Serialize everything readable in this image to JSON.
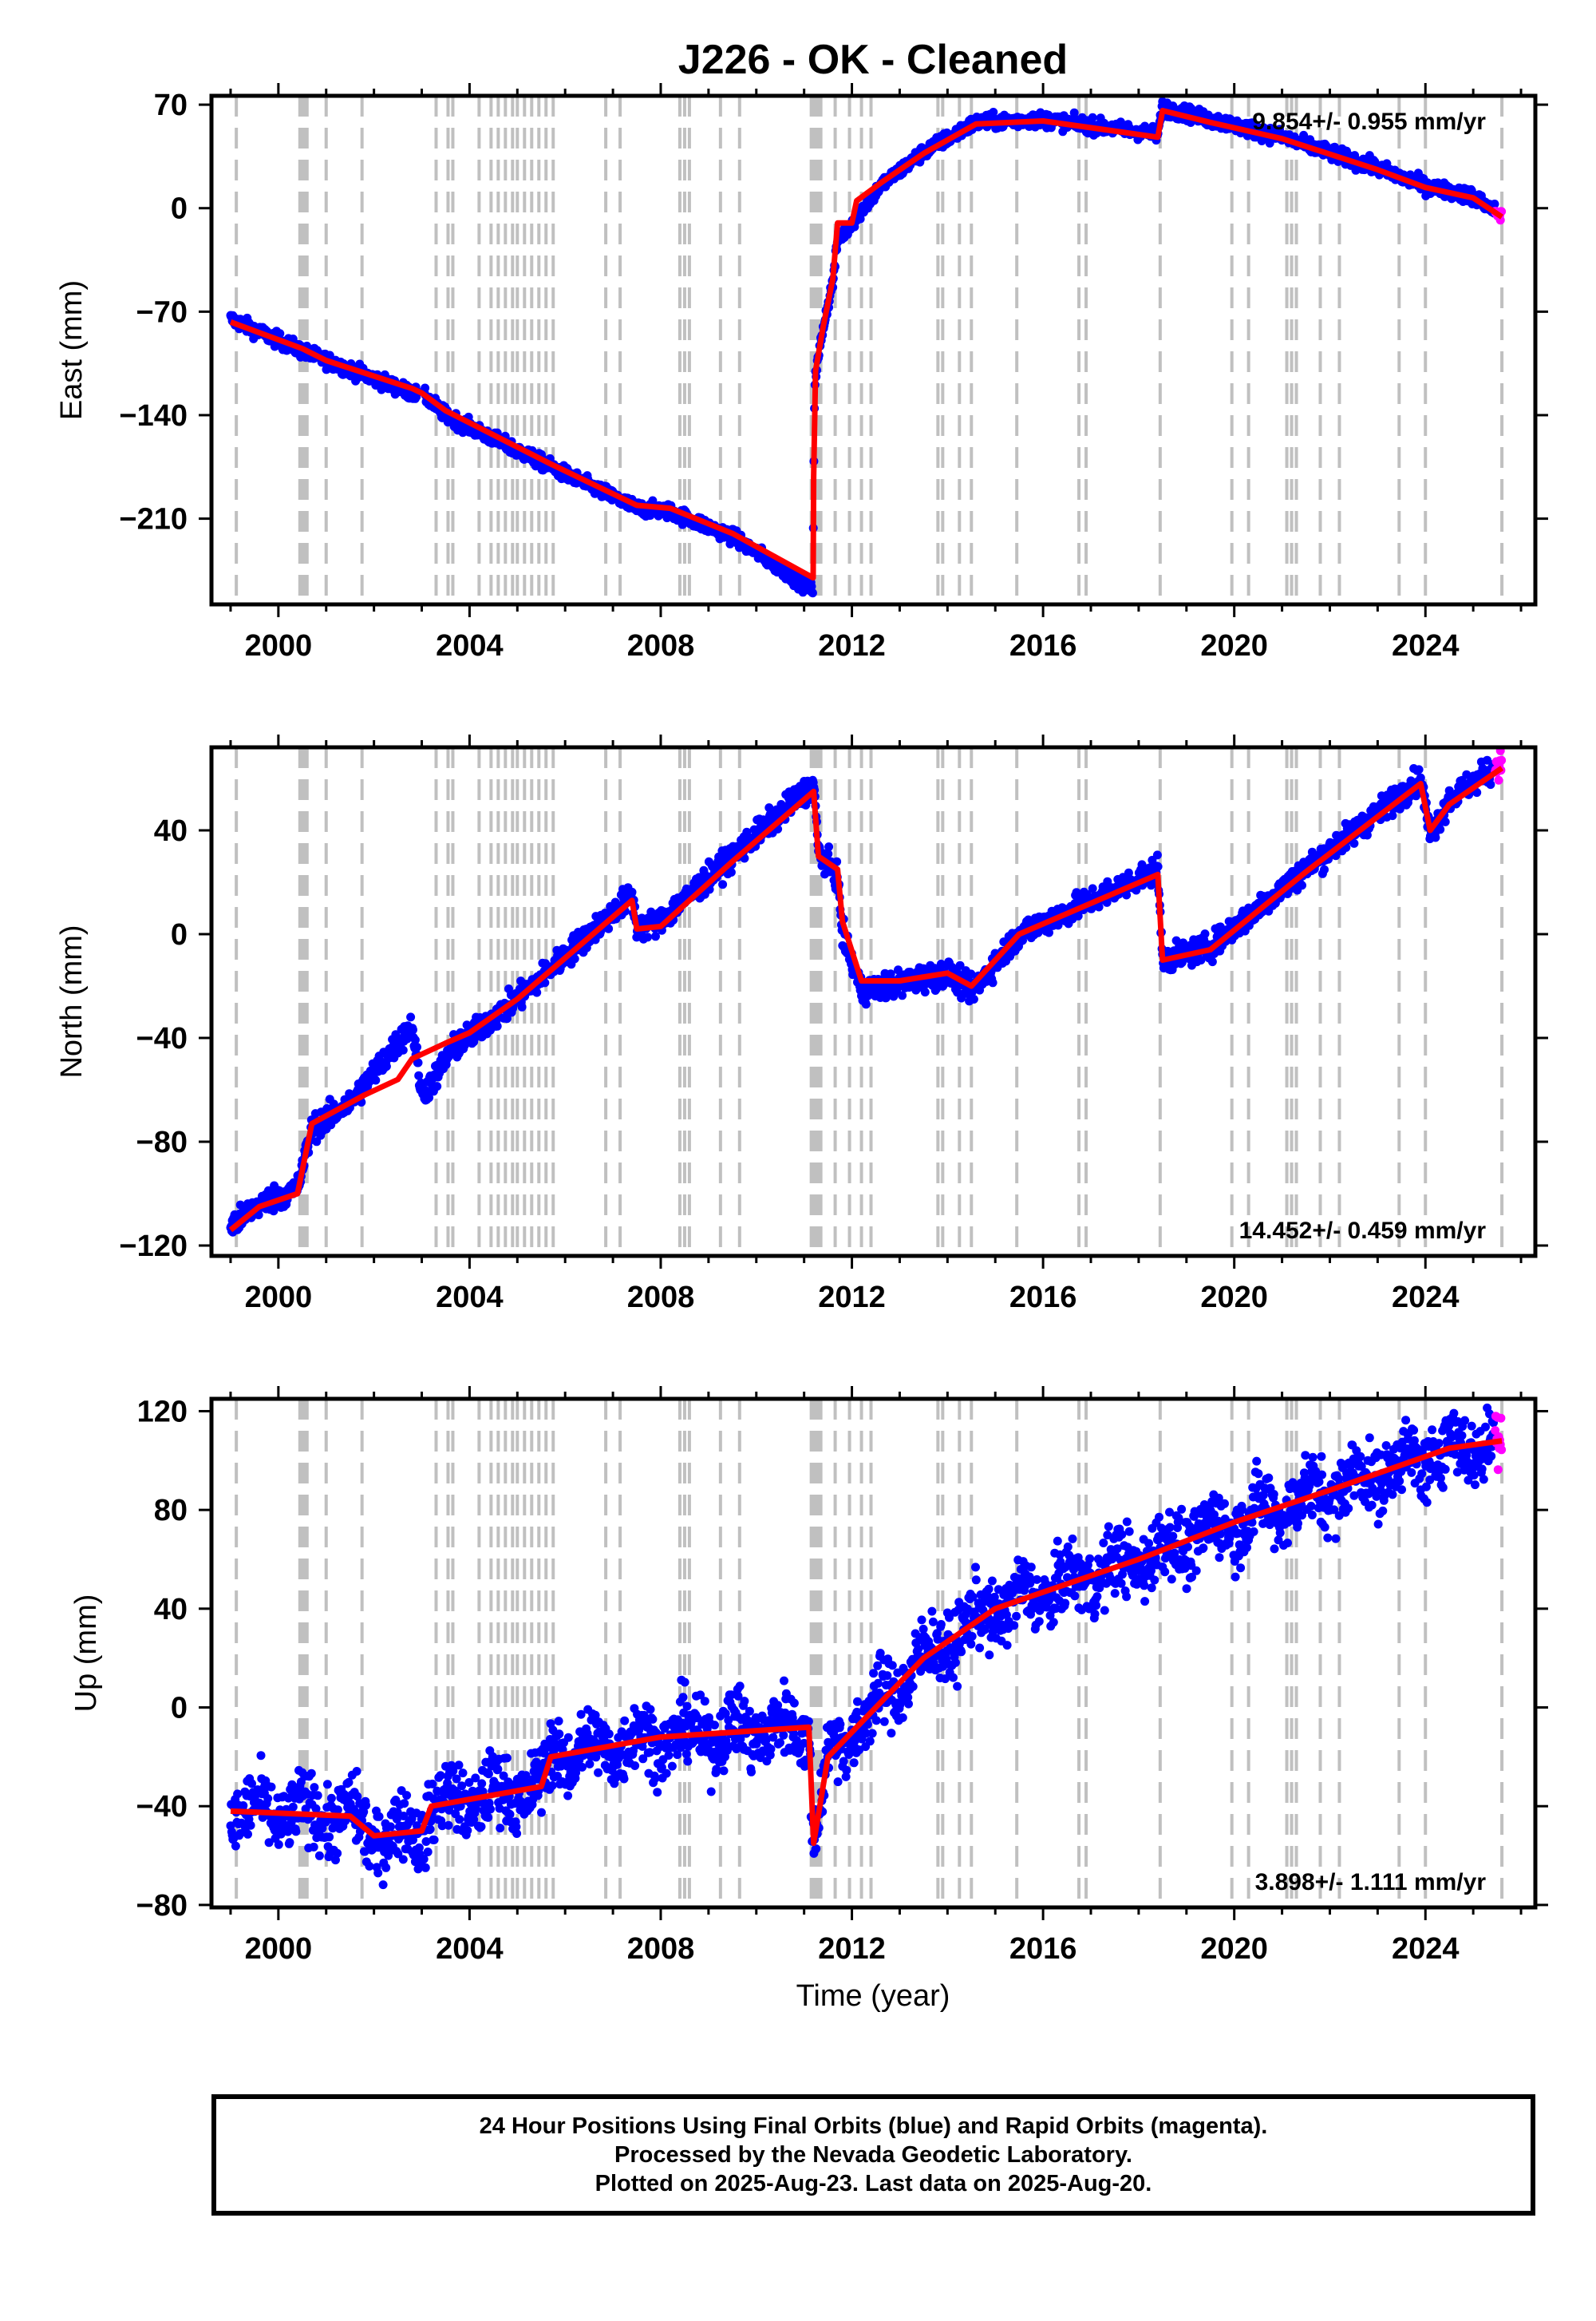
{
  "title": "J226  - OK - Cleaned",
  "xlabel": "Time (year)",
  "footer": {
    "line1": "24 Hour Positions Using Final Orbits (blue) and Rapid Orbits (magenta).",
    "line2": "Processed by the Nevada Geodetic Laboratory.",
    "line3": "Plotted on 2025-Aug-23. Last data on 2025-Aug-20."
  },
  "colors": {
    "final_orbits": "#0000ff",
    "rapid_orbits": "#ff00ff",
    "model": "#ff0000",
    "breaks": "#c0c0c0",
    "frame": "#000000"
  },
  "chart_data": [
    {
      "type": "scatter",
      "ylabel": "East (mm)",
      "rate_text": "9.854+/- 0.955 mm/yr",
      "rate_position": "top-right",
      "xlim": [
        1998.6,
        2026.3
      ],
      "ylim": [
        -268,
        76
      ],
      "x_ticks": [
        "2000",
        "2004",
        "2008",
        "2012",
        "2016",
        "2020",
        "2024"
      ],
      "y_ticks": [
        "70",
        "0",
        "−70",
        "−140",
        "−210"
      ],
      "y_tick_values": [
        70,
        0,
        -70,
        -140,
        -210
      ],
      "trend_points": [
        [
          1999.0,
          -75
        ],
        [
          2000.6,
          -98
        ],
        [
          2002.8,
          -125
        ],
        [
          2003.1,
          -128
        ],
        [
          2003.5,
          -140
        ],
        [
          2005.7,
          -175
        ],
        [
          2007.5,
          -203
        ],
        [
          2008.2,
          -205
        ],
        [
          2009.5,
          -222
        ],
        [
          2011.18,
          -258
        ],
        [
          2011.2,
          -185
        ],
        [
          2011.22,
          -118
        ],
        [
          2011.4,
          -80
        ],
        [
          2011.6,
          -50
        ],
        [
          2011.7,
          -22
        ],
        [
          2012.0,
          -10
        ],
        [
          2012.6,
          15
        ],
        [
          2013.5,
          38
        ],
        [
          2014.6,
          58
        ],
        [
          2016.0,
          60
        ],
        [
          2018.4,
          50
        ],
        [
          2018.5,
          68
        ],
        [
          2019.5,
          60
        ],
        [
          2021.0,
          48
        ],
        [
          2023.0,
          27
        ],
        [
          2024.0,
          15
        ],
        [
          2025.0,
          8
        ],
        [
          2025.6,
          -5
        ]
      ],
      "model_points": [
        [
          1999.0,
          -77
        ],
        [
          2000.5,
          -95
        ],
        [
          2001.0,
          -103
        ],
        [
          2002.8,
          -122
        ],
        [
          2003.0,
          -125
        ],
        [
          2003.5,
          -137
        ],
        [
          2005.7,
          -173
        ],
        [
          2007.5,
          -201
        ],
        [
          2008.2,
          -203
        ],
        [
          2009.5,
          -220
        ],
        [
          2011.19,
          -250
        ],
        [
          2011.2,
          -182
        ],
        [
          2011.24,
          -110
        ],
        [
          2011.4,
          -80
        ],
        [
          2011.6,
          -48
        ],
        [
          2011.7,
          -10
        ],
        [
          2012.0,
          -10
        ],
        [
          2012.1,
          5
        ],
        [
          2012.6,
          17
        ],
        [
          2013.5,
          37
        ],
        [
          2014.6,
          57
        ],
        [
          2016.0,
          59
        ],
        [
          2018.4,
          48
        ],
        [
          2018.5,
          66
        ],
        [
          2019.5,
          58
        ],
        [
          2021.0,
          47
        ],
        [
          2023.0,
          26
        ],
        [
          2024.0,
          14
        ],
        [
          2025.0,
          7
        ],
        [
          2025.6,
          -6
        ]
      ],
      "noise_mm": 2.5,
      "rapid_range": [
        2025.45,
        2025.64
      ]
    },
    {
      "type": "scatter",
      "ylabel": "North (mm)",
      "rate_text": "14.452+/- 0.459 mm/yr",
      "rate_position": "bottom-right",
      "xlim": [
        1998.6,
        2026.3
      ],
      "ylim": [
        -124,
        72
      ],
      "x_ticks": [
        "2000",
        "2004",
        "2008",
        "2012",
        "2016",
        "2020",
        "2024"
      ],
      "y_ticks": [
        "40",
        "0",
        "−40",
        "−80",
        "−120"
      ],
      "y_tick_values": [
        40,
        0,
        -40,
        -80,
        -120
      ],
      "trend_points": [
        [
          1999.0,
          -113
        ],
        [
          1999.5,
          -105
        ],
        [
          2000.4,
          -98
        ],
        [
          2000.7,
          -75
        ],
        [
          2001.5,
          -65
        ],
        [
          2002.8,
          -35
        ],
        [
          2003.0,
          -62
        ],
        [
          2003.3,
          -55
        ],
        [
          2003.6,
          -45
        ],
        [
          2005.0,
          -25
        ],
        [
          2007.4,
          15
        ],
        [
          2007.5,
          2
        ],
        [
          2008.0,
          5
        ],
        [
          2009.5,
          30
        ],
        [
          2011.2,
          58
        ],
        [
          2011.3,
          32
        ],
        [
          2011.7,
          22
        ],
        [
          2011.8,
          0
        ],
        [
          2012.2,
          -22
        ],
        [
          2014.0,
          -15
        ],
        [
          2014.5,
          -22
        ],
        [
          2015.5,
          0
        ],
        [
          2018.4,
          25
        ],
        [
          2018.5,
          -10
        ],
        [
          2019.5,
          -5
        ],
        [
          2021.5,
          25
        ],
        [
          2023.9,
          60
        ],
        [
          2024.1,
          38
        ],
        [
          2024.5,
          52
        ],
        [
          2025.6,
          66
        ]
      ],
      "model_points": [
        [
          1999.0,
          -114
        ],
        [
          1999.6,
          -105
        ],
        [
          2000.4,
          -100
        ],
        [
          2000.7,
          -73
        ],
        [
          2001.5,
          -65
        ],
        [
          2001.8,
          -62
        ],
        [
          2002.5,
          -56
        ],
        [
          2002.8,
          -48
        ],
        [
          2003.5,
          -42
        ],
        [
          2004.0,
          -38
        ],
        [
          2005.0,
          -25
        ],
        [
          2007.4,
          13
        ],
        [
          2007.5,
          2
        ],
        [
          2008.0,
          3
        ],
        [
          2009.5,
          28
        ],
        [
          2011.2,
          55
        ],
        [
          2011.3,
          30
        ],
        [
          2011.7,
          25
        ],
        [
          2011.8,
          5
        ],
        [
          2012.2,
          -18
        ],
        [
          2013.0,
          -18
        ],
        [
          2014.0,
          -15
        ],
        [
          2014.5,
          -20
        ],
        [
          2015.5,
          0
        ],
        [
          2018.4,
          23
        ],
        [
          2018.5,
          -10
        ],
        [
          2019.5,
          -6
        ],
        [
          2021.5,
          24
        ],
        [
          2023.9,
          58
        ],
        [
          2024.1,
          40
        ],
        [
          2024.5,
          50
        ],
        [
          2025.6,
          64
        ]
      ],
      "noise_mm": 2.5,
      "rapid_range": [
        2025.45,
        2025.64
      ]
    },
    {
      "type": "scatter",
      "ylabel": "Up (mm)",
      "rate_text": "3.898+/- 1.111 mm/yr",
      "rate_position": "bottom-right",
      "xlim": [
        1998.6,
        2026.3
      ],
      "ylim": [
        -81,
        125
      ],
      "x_ticks": [
        "2000",
        "2004",
        "2008",
        "2012",
        "2016",
        "2020",
        "2024"
      ],
      "y_ticks": [
        "120",
        "80",
        "40",
        "0",
        "−40",
        "−80"
      ],
      "y_tick_values": [
        120,
        80,
        40,
        0,
        -40,
        -80
      ],
      "trend_points": [
        [
          1999.0,
          -42
        ],
        [
          2001.5,
          -44
        ],
        [
          2002.0,
          -52
        ],
        [
          2003.0,
          -50
        ],
        [
          2003.2,
          -40
        ],
        [
          2005.5,
          -32
        ],
        [
          2005.7,
          -20
        ],
        [
          2008.0,
          -12
        ],
        [
          2011.1,
          -8
        ],
        [
          2011.2,
          -55
        ],
        [
          2011.5,
          -20
        ],
        [
          2012.5,
          0
        ],
        [
          2013.5,
          20
        ],
        [
          2015.0,
          40
        ],
        [
          2018.0,
          60
        ],
        [
          2020.0,
          75
        ],
        [
          2022.0,
          88
        ],
        [
          2024.5,
          105
        ],
        [
          2025.6,
          108
        ]
      ],
      "model_points": [
        [
          1999.0,
          -42
        ],
        [
          2001.5,
          -44
        ],
        [
          2002.0,
          -52
        ],
        [
          2003.0,
          -50
        ],
        [
          2003.2,
          -40
        ],
        [
          2005.5,
          -32
        ],
        [
          2005.7,
          -20
        ],
        [
          2008.0,
          -12
        ],
        [
          2011.1,
          -8
        ],
        [
          2011.2,
          -55
        ],
        [
          2011.5,
          -20
        ],
        [
          2012.5,
          0
        ],
        [
          2013.5,
          20
        ],
        [
          2015.0,
          40
        ],
        [
          2018.0,
          60
        ],
        [
          2020.0,
          75
        ],
        [
          2022.0,
          88
        ],
        [
          2024.5,
          105
        ],
        [
          2025.6,
          108
        ]
      ],
      "seasonal_mm": 5,
      "noise_mm": 7,
      "rapid_range": [
        2025.45,
        2025.64
      ]
    }
  ],
  "equipment_break_years": [
    1999.12,
    2000.45,
    2000.5,
    2000.55,
    2000.6,
    2001.0,
    2001.75,
    2003.3,
    2003.55,
    2003.65,
    2004.2,
    2004.45,
    2004.6,
    2004.75,
    2004.9,
    2005.0,
    2005.15,
    2005.3,
    2005.45,
    2005.6,
    2005.75,
    2006.85,
    2007.15,
    2008.4,
    2008.5,
    2008.6,
    2009.25,
    2009.65,
    2011.15,
    2011.2,
    2011.25,
    2011.3,
    2011.35,
    2011.65,
    2011.95,
    2012.2,
    2012.4,
    2013.8,
    2013.9,
    2014.25,
    2014.5,
    2015.45,
    2016.75,
    2016.9,
    2018.45,
    2019.95,
    2020.3,
    2021.1,
    2021.2,
    2021.3,
    2021.8,
    2022.2,
    2023.45,
    2024.0,
    2025.6
  ]
}
